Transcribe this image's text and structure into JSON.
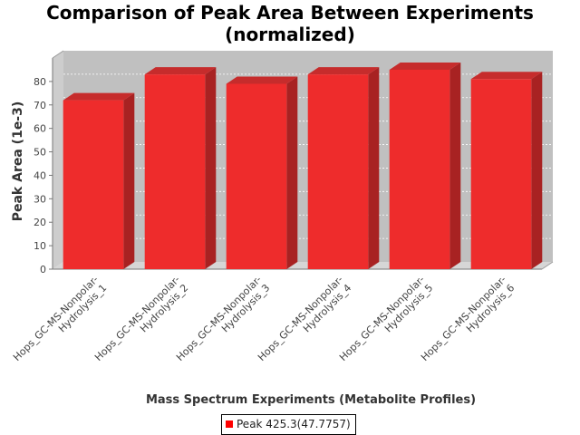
{
  "chart_data": {
    "type": "bar",
    "title": "Comparison of Peak Area Between Experiments",
    "subtitle": "(normalized)",
    "xlabel": "Mass Spectrum Experiments (Metabolite Profiles)",
    "ylabel": "Peak Area (1e-3)",
    "categories": [
      "Hops_GC-MS-Nonpolar-Hydrolysis_1",
      "Hops_GC-MS-Nonpolar-Hydrolysis_2",
      "Hops_GC-MS-Nonpolar-Hydrolysis_3",
      "Hops_GC-MS-Nonpolar-Hydrolysis_4",
      "Hops_GC-MS-Nonpolar-Hydrolysis_5",
      "Hops_GC-MS-Nonpolar-Hydrolysis_6"
    ],
    "tick_label_lines": [
      [
        "Hops_GC-MS-Nonpolar-",
        "Hydrolysis_1"
      ],
      [
        "Hops_GC-MS-Nonpolar-",
        "Hydrolysis_2"
      ],
      [
        "Hops_GC-MS-Nonpolar-",
        "Hydrolysis_3"
      ],
      [
        "Hops_GC-MS-Nonpolar-",
        "Hydrolysis_4"
      ],
      [
        "Hops_GC-MS-Nonpolar-",
        "Hydrolysis_5"
      ],
      [
        "Hops_GC-MS-Nonpolar-",
        "Hydrolysis_6"
      ]
    ],
    "series": [
      {
        "name": "Peak 425.3(47.7757)",
        "values": [
          72,
          83,
          79,
          83,
          85,
          81
        ]
      }
    ],
    "yticks": [
      0,
      10,
      20,
      30,
      40,
      50,
      60,
      70,
      80
    ],
    "ylim": [
      0,
      90
    ],
    "grid": true,
    "legend_position": "bottom",
    "bar_color": "#ee2c2c",
    "bar_top_color": "#c62c2c",
    "bar_side_color": "#a82222",
    "plot_background": "#c0c0c0"
  }
}
